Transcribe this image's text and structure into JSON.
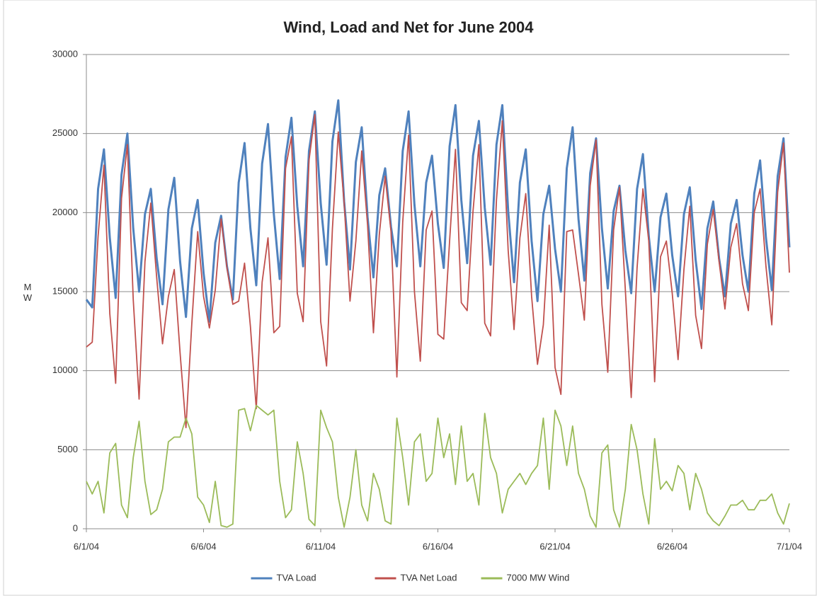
{
  "chart_data": {
    "type": "line",
    "title": "Wind, Load and Net for June 2004",
    "y_label": "MW",
    "xlim": [
      1,
      31
    ],
    "xticks": [
      {
        "value": 1,
        "label": "6/1/04"
      },
      {
        "value": 6,
        "label": "6/6/04"
      },
      {
        "value": 11,
        "label": "6/11/04"
      },
      {
        "value": 16,
        "label": "6/16/04"
      },
      {
        "value": 21,
        "label": "6/21/04"
      },
      {
        "value": 26,
        "label": "6/26/04"
      },
      {
        "value": 31,
        "label": "7/1/04"
      }
    ],
    "ylim": [
      0,
      30000
    ],
    "yticks": [
      0,
      5000,
      10000,
      15000,
      20000,
      25000,
      30000
    ],
    "grid": true,
    "legend": "bottom",
    "x": [
      1,
      1.25,
      1.5,
      1.75,
      2,
      2.25,
      2.5,
      2.75,
      3,
      3.25,
      3.5,
      3.75,
      4,
      4.25,
      4.5,
      4.75,
      5,
      5.25,
      5.5,
      5.75,
      6,
      6.25,
      6.5,
      6.75,
      7,
      7.25,
      7.5,
      7.75,
      8,
      8.25,
      8.5,
      8.75,
      9,
      9.25,
      9.5,
      9.75,
      10,
      10.25,
      10.5,
      10.75,
      11,
      11.25,
      11.5,
      11.75,
      12,
      12.25,
      12.5,
      12.75,
      13,
      13.25,
      13.5,
      13.75,
      14,
      14.25,
      14.5,
      14.75,
      15,
      15.25,
      15.5,
      15.75,
      16,
      16.25,
      16.5,
      16.75,
      17,
      17.25,
      17.5,
      17.75,
      18,
      18.25,
      18.5,
      18.75,
      19,
      19.25,
      19.5,
      19.75,
      20,
      20.25,
      20.5,
      20.75,
      21,
      21.25,
      21.5,
      21.75,
      22,
      22.25,
      22.5,
      22.75,
      23,
      23.25,
      23.5,
      23.75,
      24,
      24.25,
      24.5,
      24.75,
      25,
      25.25,
      25.5,
      25.75,
      26,
      26.25,
      26.5,
      26.75,
      27,
      27.25,
      27.5,
      27.75,
      28,
      28.25,
      28.5,
      28.75,
      29,
      29.25,
      29.5,
      29.75,
      30,
      30.25,
      30.5,
      30.75,
      31
    ],
    "series": [
      {
        "name": "TVA Load",
        "color": "#4f81bd",
        "values": [
          14500,
          14000,
          21500,
          24000,
          18400,
          14600,
          22400,
          25000,
          19000,
          15000,
          19900,
          21500,
          17100,
          14200,
          20200,
          22200,
          16900,
          13400,
          19000,
          20800,
          16200,
          13100,
          18100,
          19800,
          16600,
          14500,
          21900,
          24400,
          19000,
          15400,
          23100,
          25600,
          19900,
          15800,
          23500,
          26000,
          20400,
          16600,
          23900,
          26400,
          20600,
          16700,
          24500,
          27100,
          20700,
          16400,
          23200,
          25400,
          19700,
          15900,
          21100,
          22800,
          19100,
          16600,
          23900,
          26400,
          20500,
          16600,
          21900,
          23600,
          19300,
          16500,
          24200,
          26800,
          20800,
          16800,
          23600,
          25800,
          20300,
          16700,
          24300,
          26800,
          20100,
          15600,
          21900,
          24000,
          18200,
          14400,
          19900,
          21700,
          17700,
          15000,
          22800,
          25400,
          19600,
          15700,
          22500,
          24700,
          19000,
          15200,
          20100,
          21700,
          17600,
          14900,
          21500,
          23700,
          18500,
          15000,
          19700,
          21200,
          17300,
          14700,
          19900,
          21600,
          17000,
          13900,
          19000,
          20700,
          17100,
          14700,
          19300,
          20800,
          17300,
          15000,
          21200,
          23300,
          18400,
          15100,
          22300,
          24700,
          17800
        ]
      },
      {
        "name": "TVA Net Load",
        "color": "#c0504d",
        "values": [
          11500,
          11800,
          18500,
          23000,
          13600,
          9200,
          20900,
          24300,
          14500,
          8200,
          16900,
          20600,
          15900,
          11700,
          14700,
          16400,
          11100,
          6400,
          13000,
          18800,
          14700,
          12700,
          15100,
          19600,
          16500,
          14200,
          14400,
          16800,
          12800,
          7600,
          15600,
          18400,
          12400,
          12800,
          22800,
          24800,
          14900,
          13100,
          23300,
          26200,
          13100,
          10300,
          19000,
          25100,
          20600,
          14400,
          18200,
          23900,
          19200,
          12400,
          18600,
          22300,
          18800,
          9600,
          19400,
          24900,
          15000,
          10600,
          18900,
          20100,
          12300,
          12000,
          18200,
          24000,
          14300,
          13800,
          20100,
          24300,
          13000,
          12200,
          20800,
          25800,
          17600,
          12600,
          18400,
          21200,
          14700,
          10400,
          12900,
          19200,
          10200,
          8500,
          18800,
          18900,
          16100,
          13200,
          21700,
          24600,
          14200,
          9900,
          18900,
          21600,
          15100,
          8300,
          16500,
          21500,
          18200,
          9300,
          17200,
          18200,
          14900,
          10700,
          16400,
          20400,
          13500,
          11400,
          18000,
          20200,
          16900,
          13900,
          17800,
          19300,
          15500,
          13800,
          20000,
          21500,
          16600,
          12900,
          21300,
          24400,
          16200
        ]
      },
      {
        "name": "7000 MW Wind",
        "color": "#9bbb59",
        "values": [
          3000,
          2200,
          3000,
          1000,
          4800,
          5400,
          1500,
          700,
          4500,
          6800,
          3000,
          900,
          1200,
          2500,
          5500,
          5800,
          5800,
          7000,
          6000,
          2000,
          1500,
          400,
          3000,
          200,
          100,
          300,
          7500,
          7600,
          6200,
          7800,
          7500,
          7200,
          7500,
          3000,
          700,
          1200,
          5500,
          3500,
          600,
          200,
          7500,
          6400,
          5500,
          2000,
          100,
          2000,
          5000,
          1500,
          500,
          3500,
          2500,
          500,
          300,
          7000,
          4500,
          1500,
          5500,
          6000,
          3000,
          3500,
          7000,
          4500,
          6000,
          2800,
          6500,
          3000,
          3500,
          1500,
          7300,
          4500,
          3500,
          1000,
          2500,
          3000,
          3500,
          2800,
          3500,
          4000,
          7000,
          2500,
          7500,
          6500,
          4000,
          6500,
          3500,
          2500,
          800,
          100,
          4800,
          5300,
          1200,
          100,
          2500,
          6600,
          5000,
          2200,
          300,
          5700,
          2500,
          3000,
          2400,
          4000,
          3500,
          1200,
          3500,
          2500,
          1000,
          500,
          200,
          800,
          1500,
          1500,
          1800,
          1200,
          1200,
          1800,
          1800,
          2200,
          1000,
          300,
          1600
        ]
      }
    ]
  }
}
